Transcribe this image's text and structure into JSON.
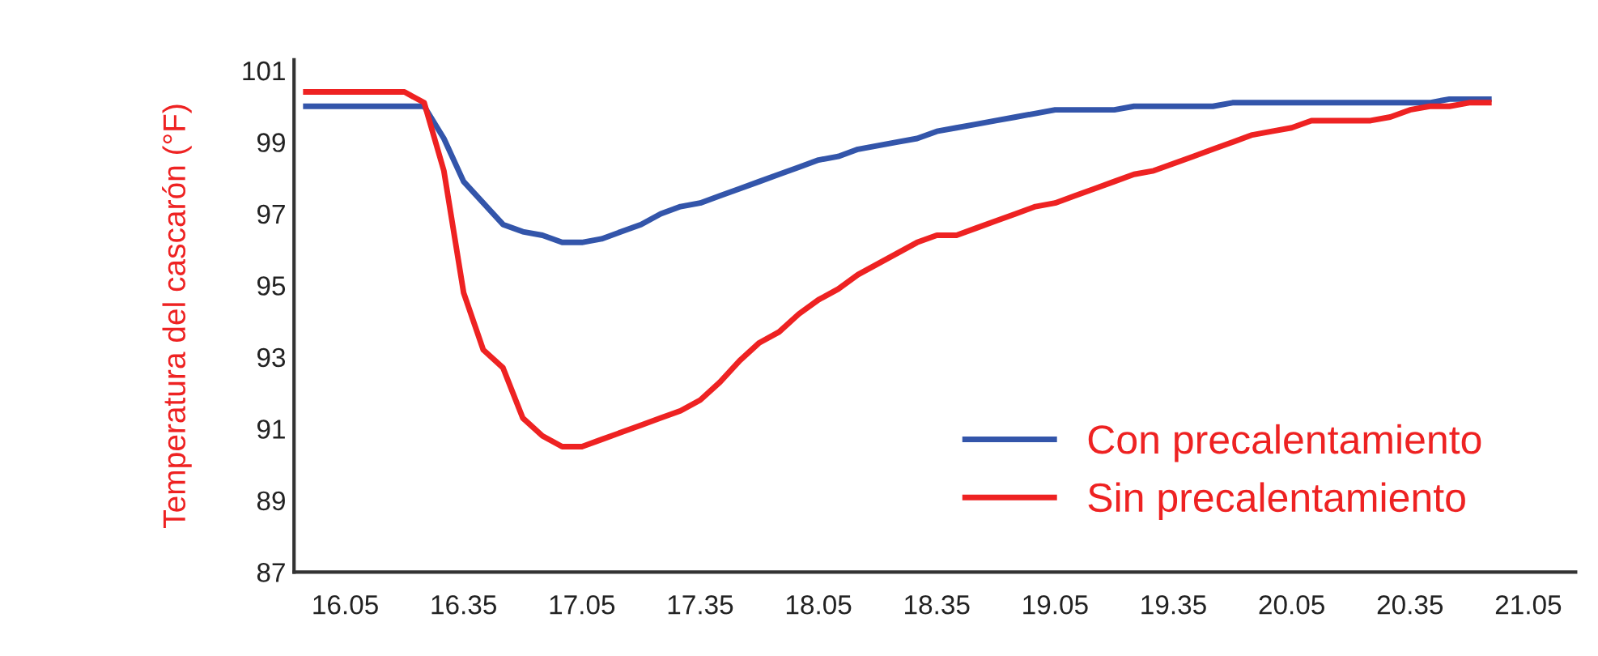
{
  "chart_data": {
    "type": "line",
    "ylabel": "Temperatura del cascarón (°F)",
    "categories": [
      null,
      null,
      "16.05",
      null,
      null,
      null,
      null,
      null,
      "16.35",
      null,
      null,
      null,
      null,
      null,
      "17.05",
      null,
      null,
      null,
      null,
      null,
      "17.35",
      null,
      null,
      null,
      null,
      null,
      "18.05",
      null,
      null,
      null,
      null,
      null,
      "18.35",
      null,
      null,
      null,
      null,
      null,
      "19.05",
      null,
      null,
      null,
      null,
      null,
      "19.35",
      null,
      null,
      null,
      null,
      null,
      "20.05",
      null,
      null,
      null,
      null,
      null,
      "20.35",
      null,
      null,
      null,
      null,
      null,
      "21.05",
      null,
      null
    ],
    "ylim": [
      87,
      101.3
    ],
    "yticks": [
      87,
      89,
      91,
      93,
      95,
      97,
      99,
      101
    ],
    "grid": false,
    "legend": "bottom right",
    "marker": "none",
    "line_style": "solid",
    "series": [
      {
        "name": "Con precalentamiento",
        "color": "#3355aa",
        "values": [
          100.0,
          100.0,
          100.0,
          100.0,
          100.0,
          100.0,
          100.0,
          99.1,
          97.9,
          97.3,
          96.7,
          96.5,
          96.4,
          96.2,
          96.2,
          96.3,
          96.5,
          96.7,
          97.0,
          97.2,
          97.3,
          97.5,
          97.7,
          97.9,
          98.1,
          98.3,
          98.5,
          98.6,
          98.8,
          98.9,
          99.0,
          99.1,
          99.3,
          99.4,
          99.5,
          99.6,
          99.7,
          99.8,
          99.9,
          99.9,
          99.9,
          99.9,
          100.0,
          100.0,
          100.0,
          100.0,
          100.0,
          100.1,
          100.1,
          100.1,
          100.1,
          100.1,
          100.1,
          100.1,
          100.1,
          100.1,
          100.1,
          100.1,
          100.2,
          100.2,
          100.2,
          null,
          null,
          null,
          null
        ]
      },
      {
        "name": "Sin precalentamiento",
        "color": "#ee2222",
        "values": [
          100.4,
          100.4,
          100.4,
          100.4,
          100.4,
          100.4,
          100.1,
          98.2,
          94.8,
          93.2,
          92.7,
          91.3,
          90.8,
          90.5,
          90.5,
          90.7,
          90.9,
          91.1,
          91.3,
          91.5,
          91.8,
          92.3,
          92.9,
          93.4,
          93.7,
          94.2,
          94.6,
          94.9,
          95.3,
          95.6,
          95.9,
          96.2,
          96.4,
          96.4,
          96.6,
          96.8,
          97.0,
          97.2,
          97.3,
          97.5,
          97.7,
          97.9,
          98.1,
          98.2,
          98.4,
          98.6,
          98.8,
          99.0,
          99.2,
          99.3,
          99.4,
          99.6,
          99.6,
          99.6,
          99.6,
          99.7,
          99.9,
          100.0,
          100.0,
          100.1,
          100.1,
          null,
          null,
          null,
          null
        ]
      }
    ]
  }
}
